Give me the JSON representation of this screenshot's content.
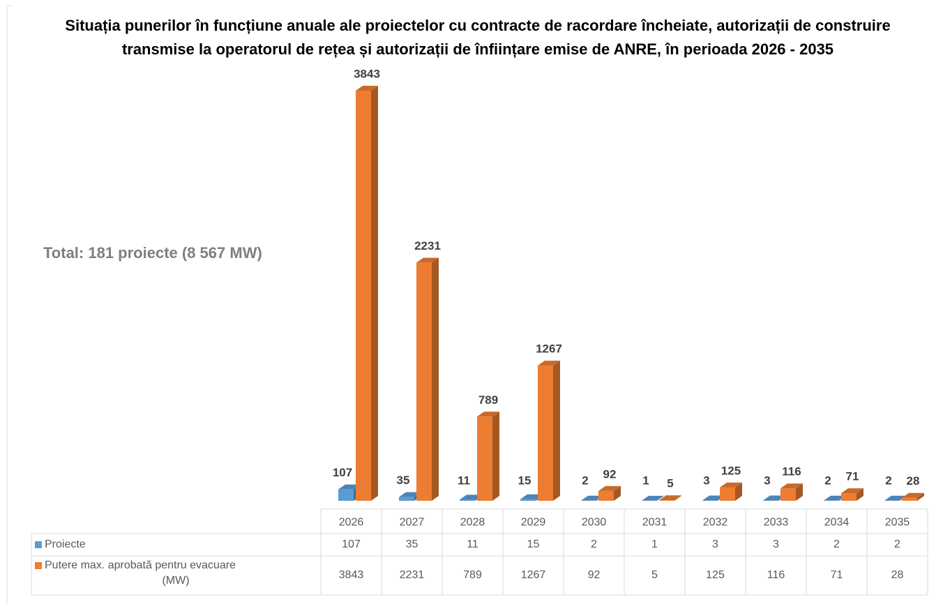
{
  "chart_data": {
    "type": "bar3d",
    "title": "Situația punerilor în funcțiune anuale ale proiectelor cu contracte de racordare încheiate, autorizații de construire transmise la operatorul de rețea și autorizații de înființare emise de ANRE, în perioada 2026 - 2035",
    "annotation": "Total: 181 proiecte (8 567 MW)",
    "categories": [
      "2026",
      "2027",
      "2028",
      "2029",
      "2030",
      "2031",
      "2032",
      "2033",
      "2034",
      "2035"
    ],
    "series": [
      {
        "name": "Proiecte",
        "color": "#5b9bd5",
        "values": [
          107,
          35,
          11,
          15,
          2,
          1,
          3,
          3,
          2,
          2
        ]
      },
      {
        "name": "Putere max. aprobată pentru evacuare (MW)",
        "color": "#ed7d31",
        "values": [
          3843,
          2231,
          789,
          1267,
          92,
          5,
          125,
          116,
          71,
          28
        ]
      }
    ]
  }
}
